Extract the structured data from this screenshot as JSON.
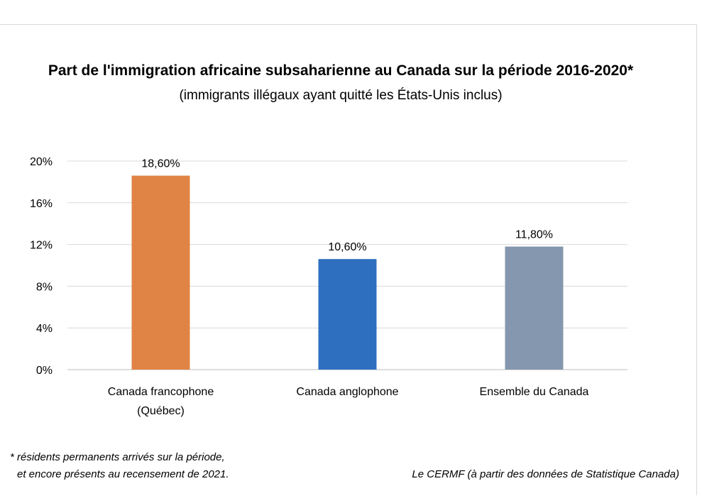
{
  "chart_data": {
    "type": "bar",
    "title": "Part de l'immigration africaine subsaharienne au Canada sur la période 2016-2020*",
    "subtitle": "(immigrants illégaux ayant quitté les États-Unis inclus)",
    "categories": [
      [
        "Canada francophone",
        "(Québec)"
      ],
      [
        "Canada anglophone"
      ],
      [
        "Ensemble du Canada"
      ]
    ],
    "values": [
      18.6,
      10.6,
      11.8
    ],
    "value_labels": [
      "18,60%",
      "10,60%",
      "11,80%"
    ],
    "colors": [
      "#e08445",
      "#2e6fc0",
      "#8597ae"
    ],
    "ylim": [
      0,
      20
    ],
    "yticks": [
      {
        "value": 0,
        "label": "0%"
      },
      {
        "value": 4,
        "label": "4%"
      },
      {
        "value": 8,
        "label": "8%"
      },
      {
        "value": 12,
        "label": "12%"
      },
      {
        "value": 16,
        "label": "16%"
      },
      {
        "value": 20,
        "label": "20%"
      }
    ],
    "grid": true,
    "xlabel": "",
    "ylabel": ""
  },
  "footnote": {
    "line1": "* résidents permanents arrivés sur la période,",
    "line2": "et encore présents au recensement de 2021."
  },
  "source": "Le CERMF (à partir des données de Statistique Canada)"
}
